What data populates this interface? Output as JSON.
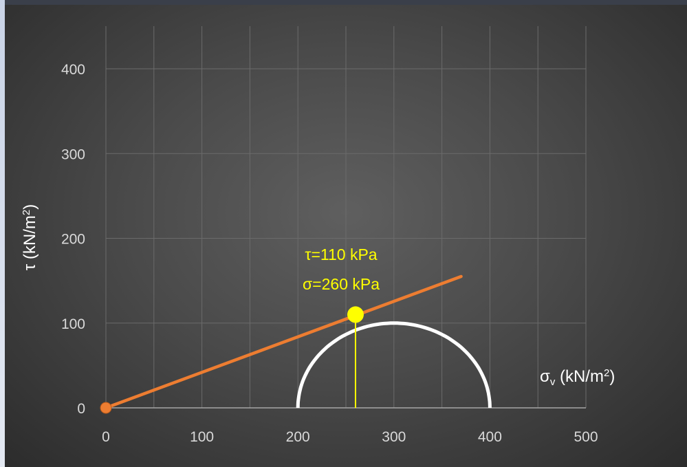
{
  "chart_data": {
    "type": "scatter",
    "xlabel_main": "σ",
    "xlabel_sub": "v",
    "xlabel_rest": " (kN/m",
    "xlabel_sup": "2",
    "xlabel_close": ")",
    "ylabel_main": "τ (kN/m",
    "ylabel_sup": "2",
    "ylabel_close": ")",
    "xlim": [
      0,
      500
    ],
    "ylim": [
      0,
      400
    ],
    "x_ticks": [
      "0",
      "100",
      "200",
      "300",
      "400",
      "500"
    ],
    "y_ticks": [
      "0",
      "100",
      "200",
      "300",
      "400"
    ],
    "grid": true,
    "series": [
      {
        "type": "line",
        "color": "#ed7d31",
        "points": [
          [
            0,
            0
          ],
          [
            370,
            155
          ]
        ]
      },
      {
        "type": "semicircle",
        "color": "#ffffff",
        "center": 300,
        "radius": 100
      },
      {
        "type": "vline",
        "color": "#ffff00",
        "x": 260,
        "y_from": 0,
        "y_to": 110
      }
    ],
    "points": [
      {
        "x": 0,
        "y": 0,
        "color": "#ed7d31"
      },
      {
        "x": 260,
        "y": 110,
        "color": "#ffff00"
      }
    ],
    "annotation": {
      "line1": "τ=110 kPa",
      "line2": "σ=260 kPa"
    }
  }
}
